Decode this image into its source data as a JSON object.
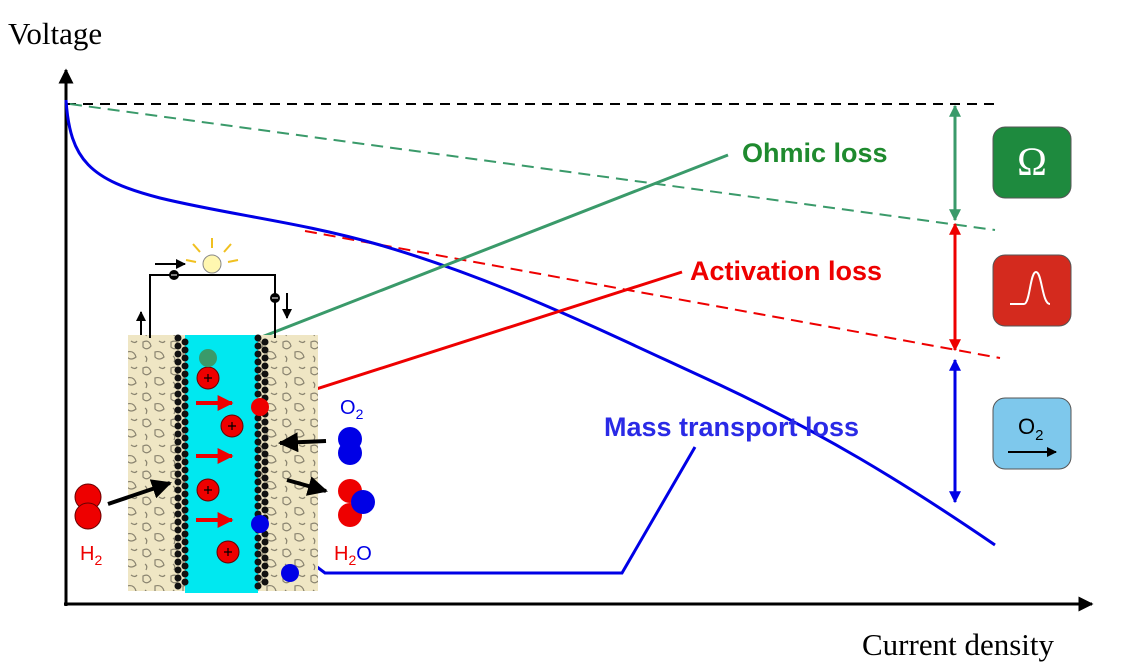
{
  "axes": {
    "y_label": "Voltage",
    "x_label": "Current density"
  },
  "losses": [
    {
      "label": "Ohmic loss",
      "icon": "Ω"
    },
    {
      "label": "Activation loss"
    },
    {
      "label": "Mass transport loss",
      "icon": {
        "symbol": "O",
        "subscript": "2"
      }
    }
  ],
  "cell": {
    "reactant": {
      "symbol": "H",
      "subscript": "2"
    },
    "oxidant": {
      "symbol": "O",
      "subscript": "2"
    },
    "product": {
      "symbol": "H",
      "subscript": "2",
      "tail": "O"
    }
  }
}
